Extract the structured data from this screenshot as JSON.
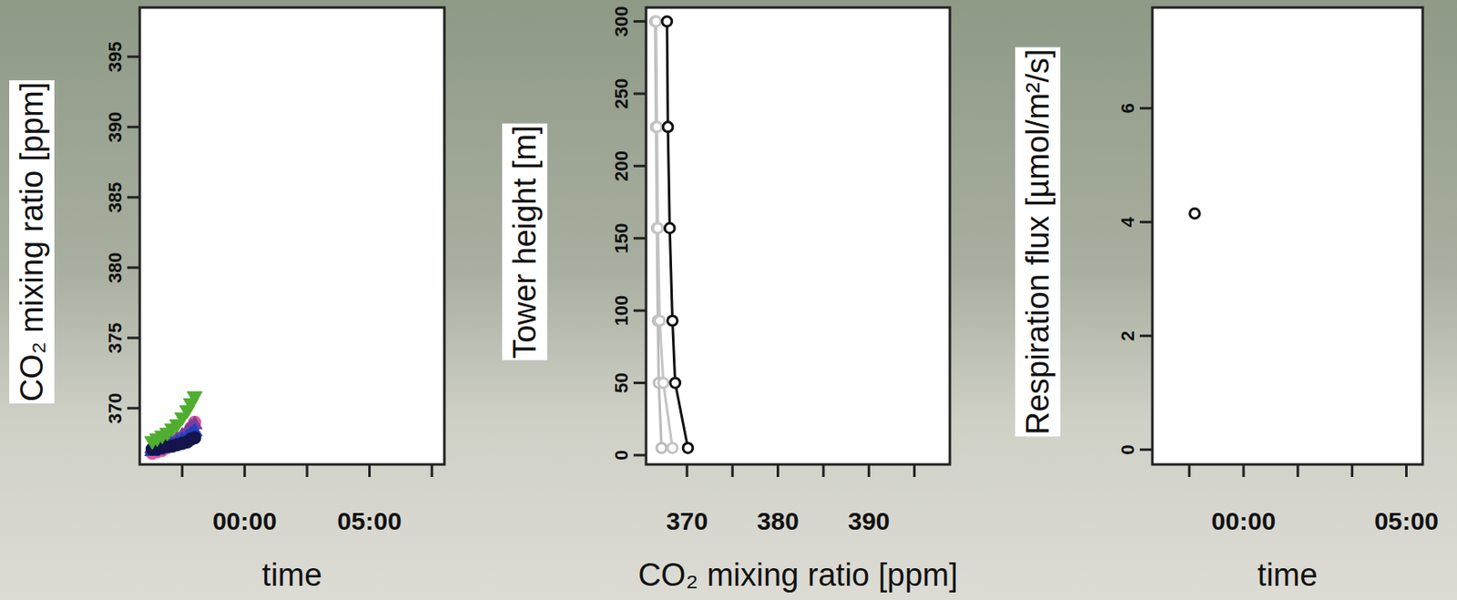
{
  "chart_data": [
    {
      "type": "scatter",
      "x_label": "time",
      "y_label": "CO₂ mixing ratio [ppm]",
      "xlim": [
        -4.2,
        8
      ],
      "ylim": [
        366,
        398.5
      ],
      "xticks": [
        {
          "value": -2.5,
          "label": null
        },
        {
          "value": 0,
          "label": "00:00"
        },
        {
          "value": 2.5,
          "label": null
        },
        {
          "value": 5,
          "label": "05:00"
        },
        {
          "value": 7.5,
          "label": null
        }
      ],
      "yticks": [
        370,
        375,
        380,
        385,
        390,
        395
      ],
      "series": [
        {
          "color": "#e8579a",
          "marker": "circle",
          "x": [
            -3.7,
            -3.5,
            -3.3,
            -3.1,
            -2.9,
            -2.7,
            -2.5,
            -2.3,
            -2.15,
            -2.0
          ],
          "values": [
            366.8,
            366.9,
            367.0,
            367.2,
            367.4,
            367.6,
            367.9,
            368.2,
            368.6,
            369.0
          ]
        },
        {
          "color": "#7a3fa0",
          "marker": "triangle-up",
          "x": [
            -3.7,
            -3.5,
            -3.3,
            -3.1,
            -2.9,
            -2.7,
            -2.5,
            -2.3,
            -2.15,
            -2.0
          ],
          "values": [
            367.2,
            367.3,
            367.4,
            367.5,
            367.7,
            367.9,
            368.1,
            368.4,
            368.7,
            368.9
          ]
        },
        {
          "color": "#2340c0",
          "marker": "triangle-up",
          "x": [
            -3.7,
            -3.5,
            -3.3,
            -3.1,
            -2.9,
            -2.7,
            -2.5,
            -2.3,
            -2.15,
            -2.0
          ],
          "values": [
            367.0,
            367.1,
            367.2,
            367.3,
            367.5,
            367.6,
            367.8,
            368.0,
            368.2,
            368.4
          ]
        },
        {
          "color": "#15154d",
          "marker": "circle",
          "x": [
            -3.7,
            -3.5,
            -3.3,
            -3.1,
            -2.9,
            -2.7,
            -2.5,
            -2.3,
            -2.15,
            -2.0
          ],
          "values": [
            367.1,
            367.1,
            367.2,
            367.3,
            367.3,
            367.4,
            367.5,
            367.6,
            367.8,
            367.9
          ]
        },
        {
          "color": "#4fae2f",
          "marker": "triangle-down",
          "x": [
            -3.7,
            -3.5,
            -3.3,
            -3.1,
            -2.9,
            -2.7,
            -2.5,
            -2.3,
            -2.15,
            -2.0
          ],
          "values": [
            367.6,
            367.8,
            368.0,
            368.2,
            368.5,
            368.8,
            369.3,
            369.8,
            370.3,
            370.8
          ]
        }
      ]
    },
    {
      "type": "line",
      "x_label": "CO₂ mixing ratio [ppm]",
      "y_label": "Tower height [m]",
      "xlim": [
        365.5,
        398.9
      ],
      "ylim": [
        -6.4,
        309.6
      ],
      "xticks": [
        370,
        {
          "value": 375,
          "label": null
        },
        380,
        {
          "value": 385,
          "label": null
        },
        390,
        {
          "value": 395,
          "label": null
        }
      ],
      "yticks": [
        0,
        50,
        100,
        150,
        200,
        250,
        300
      ],
      "series": [
        {
          "color": "#bbbbbb",
          "marker": "open-circle",
          "x": [
            367.2,
            366.9,
            366.8,
            366.7,
            366.6,
            366.5
          ],
          "values": [
            5,
            50,
            93,
            157,
            227,
            300
          ]
        },
        {
          "color": "#c4c4c4",
          "marker": "open-circle",
          "x": [
            368.4,
            367.4,
            367.0,
            366.8,
            366.7,
            366.6
          ],
          "values": [
            5,
            50,
            93,
            157,
            227,
            300
          ]
        },
        {
          "color": "#111111",
          "marker": "open-circle",
          "x": [
            370.1,
            368.7,
            368.4,
            368.1,
            367.9,
            367.8
          ],
          "values": [
            5,
            50,
            93,
            157,
            227,
            300
          ]
        }
      ]
    },
    {
      "type": "scatter",
      "x_label": "time",
      "y_label": "Respiration flux [µmol/m²/s]",
      "xlim": [
        -2.8,
        5.5
      ],
      "ylim": [
        -0.26,
        7.77
      ],
      "xticks": [
        {
          "value": -1.667,
          "label": null
        },
        {
          "value": 0,
          "label": "00:00"
        },
        {
          "value": 1.667,
          "label": null
        },
        {
          "value": 3.333,
          "label": null
        },
        {
          "value": 5,
          "label": "05:00"
        }
      ],
      "yticks": [
        0,
        2,
        4,
        6
      ],
      "series": [
        {
          "color": "#111111",
          "marker": "open-circle",
          "x": [
            -1.5
          ],
          "values": [
            4.15
          ]
        }
      ]
    }
  ]
}
